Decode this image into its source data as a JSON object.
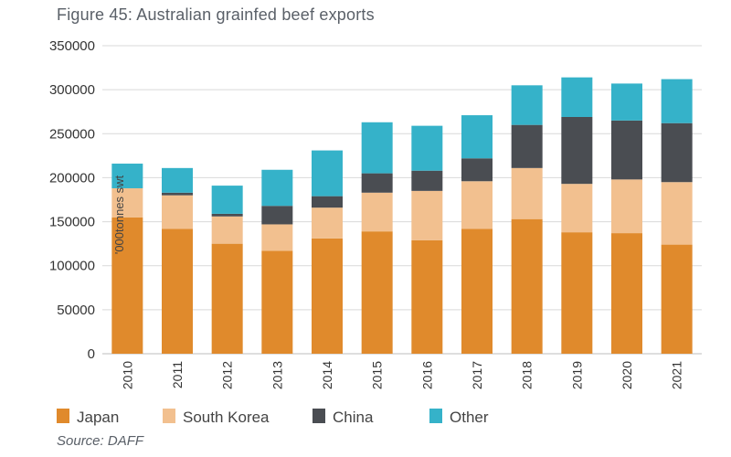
{
  "title": "Figure 45: Australian grainfed beef exports",
  "source": "Source: DAFF",
  "chart_data": {
    "type": "bar",
    "stacked": true,
    "title": "Figure 45: Australian grainfed beef exports",
    "ylabel": "'000tonnes swt",
    "xlabel": "",
    "ylim": [
      0,
      350000
    ],
    "yticks": [
      0,
      50000,
      100000,
      150000,
      200000,
      250000,
      300000,
      350000
    ],
    "grid": true,
    "legend_position": "bottom",
    "categories": [
      "2010",
      "2011",
      "2012",
      "2013",
      "2014",
      "2015",
      "2016",
      "2017",
      "2018",
      "2019",
      "2020",
      "2021"
    ],
    "series": [
      {
        "name": "Japan",
        "color": "#e08a2c",
        "values": [
          155000,
          142000,
          125000,
          117000,
          131000,
          139000,
          129000,
          142000,
          153000,
          138000,
          137000,
          124000
        ]
      },
      {
        "name": "South Korea",
        "color": "#f2c08f",
        "values": [
          33000,
          38000,
          31000,
          30000,
          35000,
          44000,
          56000,
          54000,
          58000,
          55000,
          61000,
          71000
        ]
      },
      {
        "name": "China",
        "color": "#4a4d52",
        "values": [
          0,
          3000,
          3000,
          21000,
          13000,
          22000,
          23000,
          26000,
          49000,
          76000,
          67000,
          67000
        ]
      },
      {
        "name": "Other",
        "color": "#35b2c9",
        "values": [
          28000,
          28000,
          32000,
          41000,
          52000,
          58000,
          51000,
          49000,
          45000,
          45000,
          42000,
          50000
        ]
      }
    ]
  }
}
